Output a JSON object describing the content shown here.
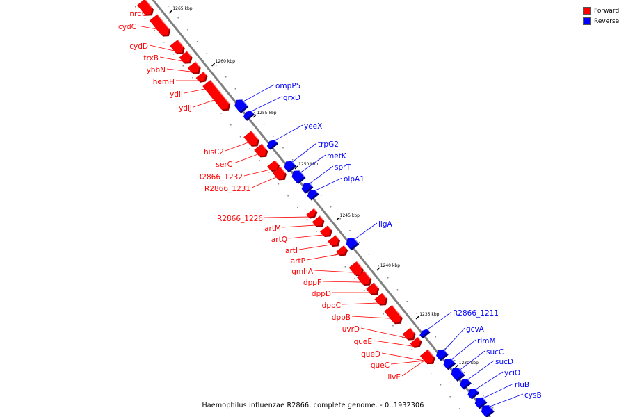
{
  "legend": {
    "forward_label": "Forward",
    "reverse_label": "Reverse",
    "forward_color": "#ff0000",
    "reverse_color": "#0000ff"
  },
  "caption": "Haemophilus influenzae R2866, complete genome. - 0..1932306",
  "axis": {
    "ticks": [
      {
        "label": "1265 kbp"
      },
      {
        "label": "1260 kbp"
      },
      {
        "label": "1255 kbp"
      },
      {
        "label": "1250 kbp"
      },
      {
        "label": "1245 kbp"
      },
      {
        "label": "1240 kbp"
      },
      {
        "label": "1235 kbp"
      },
      {
        "label": "1230 kbp"
      }
    ]
  },
  "genes": [
    {
      "name": "nrdG",
      "strand": "forward"
    },
    {
      "name": "cydC",
      "strand": "forward"
    },
    {
      "name": "cydD",
      "strand": "forward"
    },
    {
      "name": "trxB",
      "strand": "forward"
    },
    {
      "name": "ybbN",
      "strand": "forward"
    },
    {
      "name": "hemH",
      "strand": "forward"
    },
    {
      "name": "ydiI",
      "strand": "forward"
    },
    {
      "name": "ydiJ",
      "strand": "forward"
    },
    {
      "name": "ompP5",
      "strand": "reverse"
    },
    {
      "name": "grxD",
      "strand": "reverse"
    },
    {
      "name": "yeeX",
      "strand": "reverse"
    },
    {
      "name": "hisC2",
      "strand": "forward"
    },
    {
      "name": "serC",
      "strand": "forward"
    },
    {
      "name": "trpG2",
      "strand": "reverse"
    },
    {
      "name": "metK",
      "strand": "reverse"
    },
    {
      "name": "sprT",
      "strand": "reverse"
    },
    {
      "name": "R2866_1232",
      "strand": "forward"
    },
    {
      "name": "olpA1",
      "strand": "reverse"
    },
    {
      "name": "R2866_1231",
      "strand": "forward"
    },
    {
      "name": "R2866_1226",
      "strand": "forward"
    },
    {
      "name": "artM",
      "strand": "forward"
    },
    {
      "name": "ligA",
      "strand": "reverse"
    },
    {
      "name": "artQ",
      "strand": "forward"
    },
    {
      "name": "artI",
      "strand": "forward"
    },
    {
      "name": "artP",
      "strand": "forward"
    },
    {
      "name": "gmhA",
      "strand": "forward"
    },
    {
      "name": "dppF",
      "strand": "forward"
    },
    {
      "name": "dppD",
      "strand": "forward"
    },
    {
      "name": "dppC",
      "strand": "forward"
    },
    {
      "name": "dppB",
      "strand": "forward"
    },
    {
      "name": "R2866_1211",
      "strand": "reverse"
    },
    {
      "name": "uvrD",
      "strand": "forward"
    },
    {
      "name": "gcvA",
      "strand": "reverse"
    },
    {
      "name": "queE",
      "strand": "forward"
    },
    {
      "name": "rlmM",
      "strand": "reverse"
    },
    {
      "name": "sucC",
      "strand": "reverse"
    },
    {
      "name": "queD",
      "strand": "forward"
    },
    {
      "name": "sucD",
      "strand": "reverse"
    },
    {
      "name": "queC",
      "strand": "forward"
    },
    {
      "name": "yciO",
      "strand": "reverse"
    },
    {
      "name": "ilvE",
      "strand": "forward"
    },
    {
      "name": "rluB",
      "strand": "reverse"
    },
    {
      "name": "cysB",
      "strand": "reverse"
    }
  ]
}
